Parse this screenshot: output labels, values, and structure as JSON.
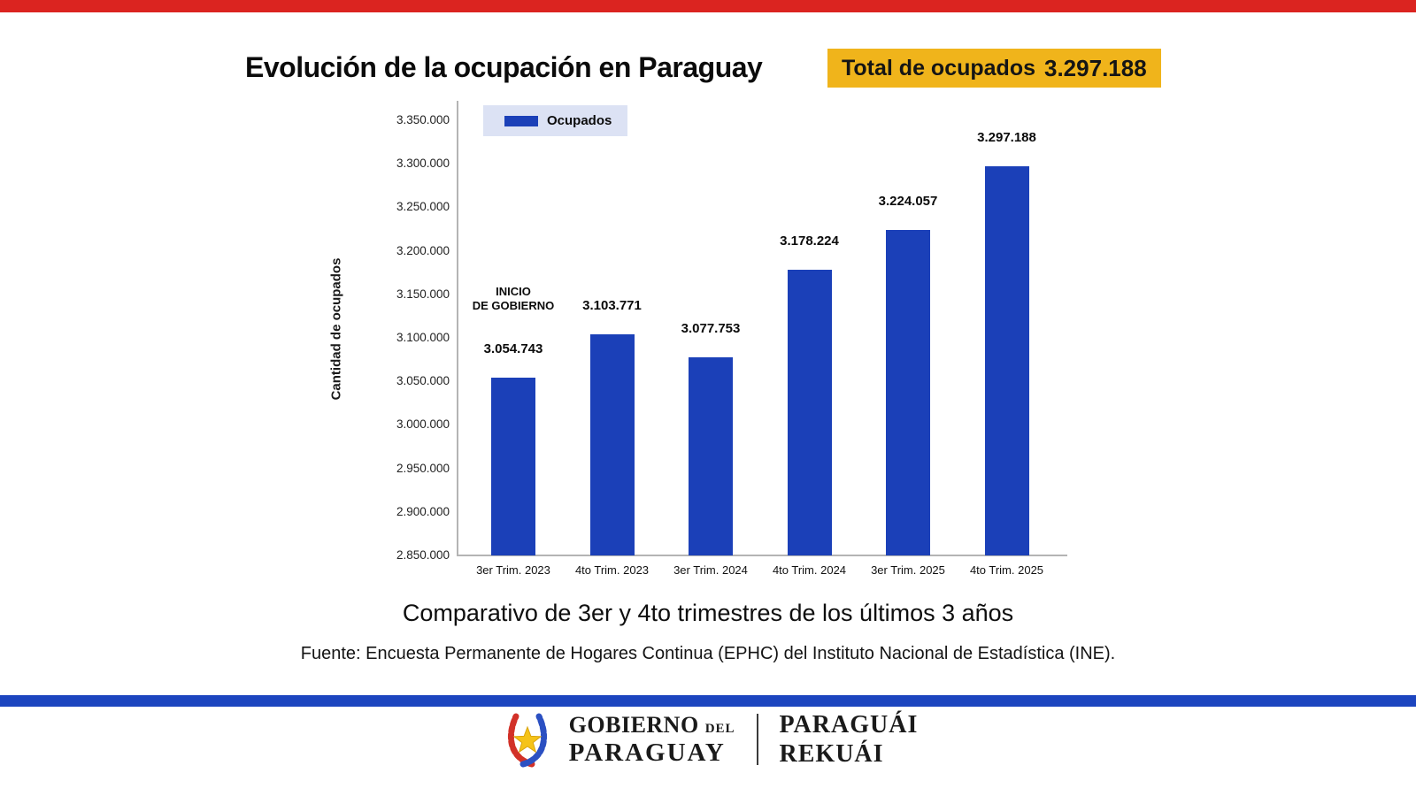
{
  "colors": {
    "top_bar": "#DB2420",
    "bar_blue": "#1B40B8",
    "divider_blue": "#1C45BF",
    "badge_yellow": "#F0B41B",
    "legend_bg": "#DCE2F4"
  },
  "header": {
    "title": "Evolución de la ocupación en Paraguay",
    "badge_label": "Total de ocupados",
    "badge_value": "3.297.188"
  },
  "chart_data": {
    "type": "bar",
    "title": "Evolución de la ocupación en Paraguay",
    "ylabel": "Cantidad de ocupados",
    "xlabel": "",
    "legend_label": "Ocupados",
    "legend_position": "top-left",
    "grid": false,
    "categories": [
      "3er Trim. 2023",
      "4to Trim. 2023",
      "3er Trim. 2024",
      "4to Trim. 2024",
      "3er Trim. 2025",
      "4to Trim. 2025"
    ],
    "values": [
      3054743,
      3103771,
      3077753,
      3178224,
      3224057,
      3297188
    ],
    "value_labels": [
      "3.054.743",
      "3.103.771",
      "3.077.753",
      "3.178.224",
      "3.224.057",
      "3.297.188"
    ],
    "ylim": [
      2850000,
      3350000
    ],
    "ytick_step": 50000,
    "ytick_labels": [
      "3.350.000",
      "3.300.000",
      "3.250.000",
      "3.200.000",
      "3.150.000",
      "3.100.000",
      "3.050.000",
      "3.000.000",
      "2.950.000",
      "2.900.000",
      "2.850.000"
    ],
    "annotation": {
      "lines": [
        "INICIO",
        "DE GOBIERNO"
      ],
      "bar_index": 0
    }
  },
  "subtitle": "Comparativo de 3er y 4to trimestres de los últimos 3 años",
  "source": "Fuente: Encuesta Permanente de Hogares Continua (EPHC) del Instituto Nacional de Estadística (INE).",
  "footer": {
    "logo_left_line1": "GOBIERNO",
    "logo_left_line1_small": "DEL",
    "logo_left_line2": "PARAGUAY",
    "logo_right_line1": "PARAGUÁI",
    "logo_right_line2": "REKUÁI"
  }
}
